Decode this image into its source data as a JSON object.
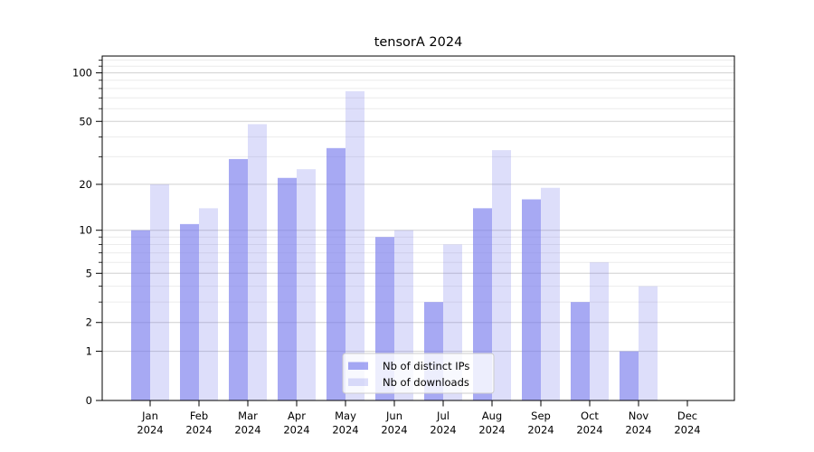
{
  "title": "tensorA 2024",
  "chart_data": {
    "type": "bar",
    "title": "tensorA 2024",
    "categories": [
      "Jan 2024",
      "Feb 2024",
      "Mar 2024",
      "Apr 2024",
      "May 2024",
      "Jun 2024",
      "Jul 2024",
      "Aug 2024",
      "Sep 2024",
      "Oct 2024",
      "Nov 2024",
      "Dec 2024"
    ],
    "series": [
      {
        "name": "Nb of distinct IPs",
        "color": "rgba(113,117,235,0.62)",
        "solid_hex": "#a8aaf4",
        "values": [
          10,
          11,
          29,
          22,
          34,
          9,
          3,
          14,
          16,
          3,
          1,
          0
        ]
      },
      {
        "name": "Nb of downloads",
        "color": "rgba(113,117,235,0.24)",
        "solid_hex": "#dbdcf9",
        "values": [
          20,
          14,
          48,
          25,
          77,
          10,
          8,
          33,
          19,
          6,
          4,
          0
        ]
      }
    ],
    "xlabel": "",
    "ylabel": "",
    "yscale": "log10(1+x)",
    "y_ticks": [
      0,
      1,
      2,
      5,
      10,
      20,
      50,
      100
    ],
    "y_minor_ticks": [
      3,
      4,
      6,
      7,
      8,
      9,
      30,
      40,
      60,
      70,
      80,
      90,
      110,
      120
    ],
    "ylim": [
      0,
      127
    ],
    "grid": true,
    "legend": {
      "position": "lower center",
      "labels": [
        "Nb of distinct IPs",
        "Nb of downloads"
      ]
    }
  },
  "colors": {
    "bar_distinct_ips": "#a8aaf4",
    "bar_downloads": "#dbdcf9",
    "grid_major": "#d0d0d0",
    "grid_minor": "#ececec",
    "frame": "#000000",
    "legend_border": "#cccccc",
    "legend_fill": "rgba(255,255,255,0.8)",
    "background": "#ffffff",
    "text": "#000000"
  }
}
